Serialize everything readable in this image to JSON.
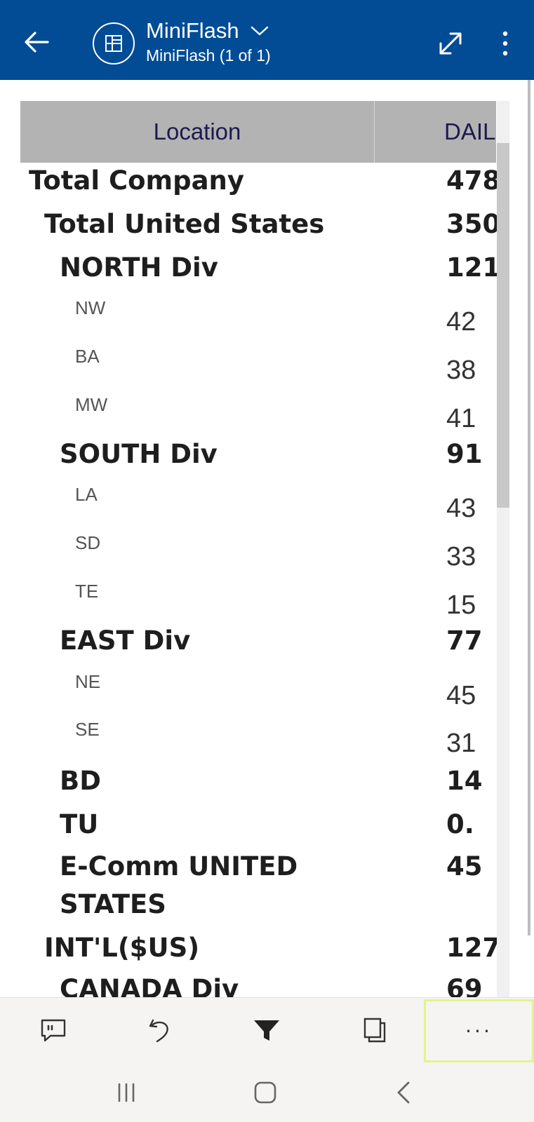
{
  "header": {
    "title": "MiniFlash",
    "subtitle": "MiniFlash (1 of 1)",
    "background": "#014c95"
  },
  "table": {
    "columns": {
      "location": "Location",
      "daily": "DAIL"
    },
    "header_background": "#b3b3b3",
    "rows": [
      {
        "label": "Total Company",
        "value": "478",
        "style": "bold",
        "indent": 0
      },
      {
        "label": "Total United States",
        "value": "350",
        "style": "bold",
        "indent": 1
      },
      {
        "label": "NORTH Div",
        "value": "121",
        "style": "bold",
        "indent": 2
      },
      {
        "label": "NW",
        "value": "42",
        "style": "light",
        "indent": 3
      },
      {
        "label": "BA",
        "value": "38",
        "style": "light",
        "indent": 3
      },
      {
        "label": "MW",
        "value": "41",
        "style": "light",
        "indent": 3
      },
      {
        "label": "SOUTH Div",
        "value": "91",
        "style": "bold",
        "indent": 2
      },
      {
        "label": "LA",
        "value": "43",
        "style": "light",
        "indent": 3
      },
      {
        "label": "SD",
        "value": "33",
        "style": "light",
        "indent": 3
      },
      {
        "label": "TE",
        "value": "15",
        "style": "light",
        "indent": 3
      },
      {
        "label": "EAST Div",
        "value": "77",
        "style": "bold",
        "indent": 2
      },
      {
        "label": "NE",
        "value": "45",
        "style": "light",
        "indent": 3
      },
      {
        "label": "SE",
        "value": "31",
        "style": "light",
        "indent": 3
      },
      {
        "label": "BD",
        "value": "14",
        "style": "bold",
        "indent": 2
      },
      {
        "label": "TU",
        "value": "0.",
        "style": "bold",
        "indent": 2
      },
      {
        "label": "E-Comm UNITED",
        "label2": "STATES",
        "value": "45",
        "style": "bold",
        "indent": 2
      },
      {
        "label": "INT'L($US)",
        "value": "127",
        "style": "bold",
        "indent": 1
      },
      {
        "label": "CANADA Div",
        "value": "69",
        "style": "bold",
        "indent": 2
      }
    ]
  },
  "toolbar": {
    "comment_icon": "comment-icon",
    "undo_icon": "undo-icon",
    "filter_icon": "filter-icon",
    "pages_icon": "pages-icon",
    "more_label": "···",
    "highlight": "#e0f58a"
  },
  "system_nav": {
    "recents_icon": "recents-icon",
    "home_icon": "home-icon",
    "back_icon": "back-chevron-icon"
  }
}
